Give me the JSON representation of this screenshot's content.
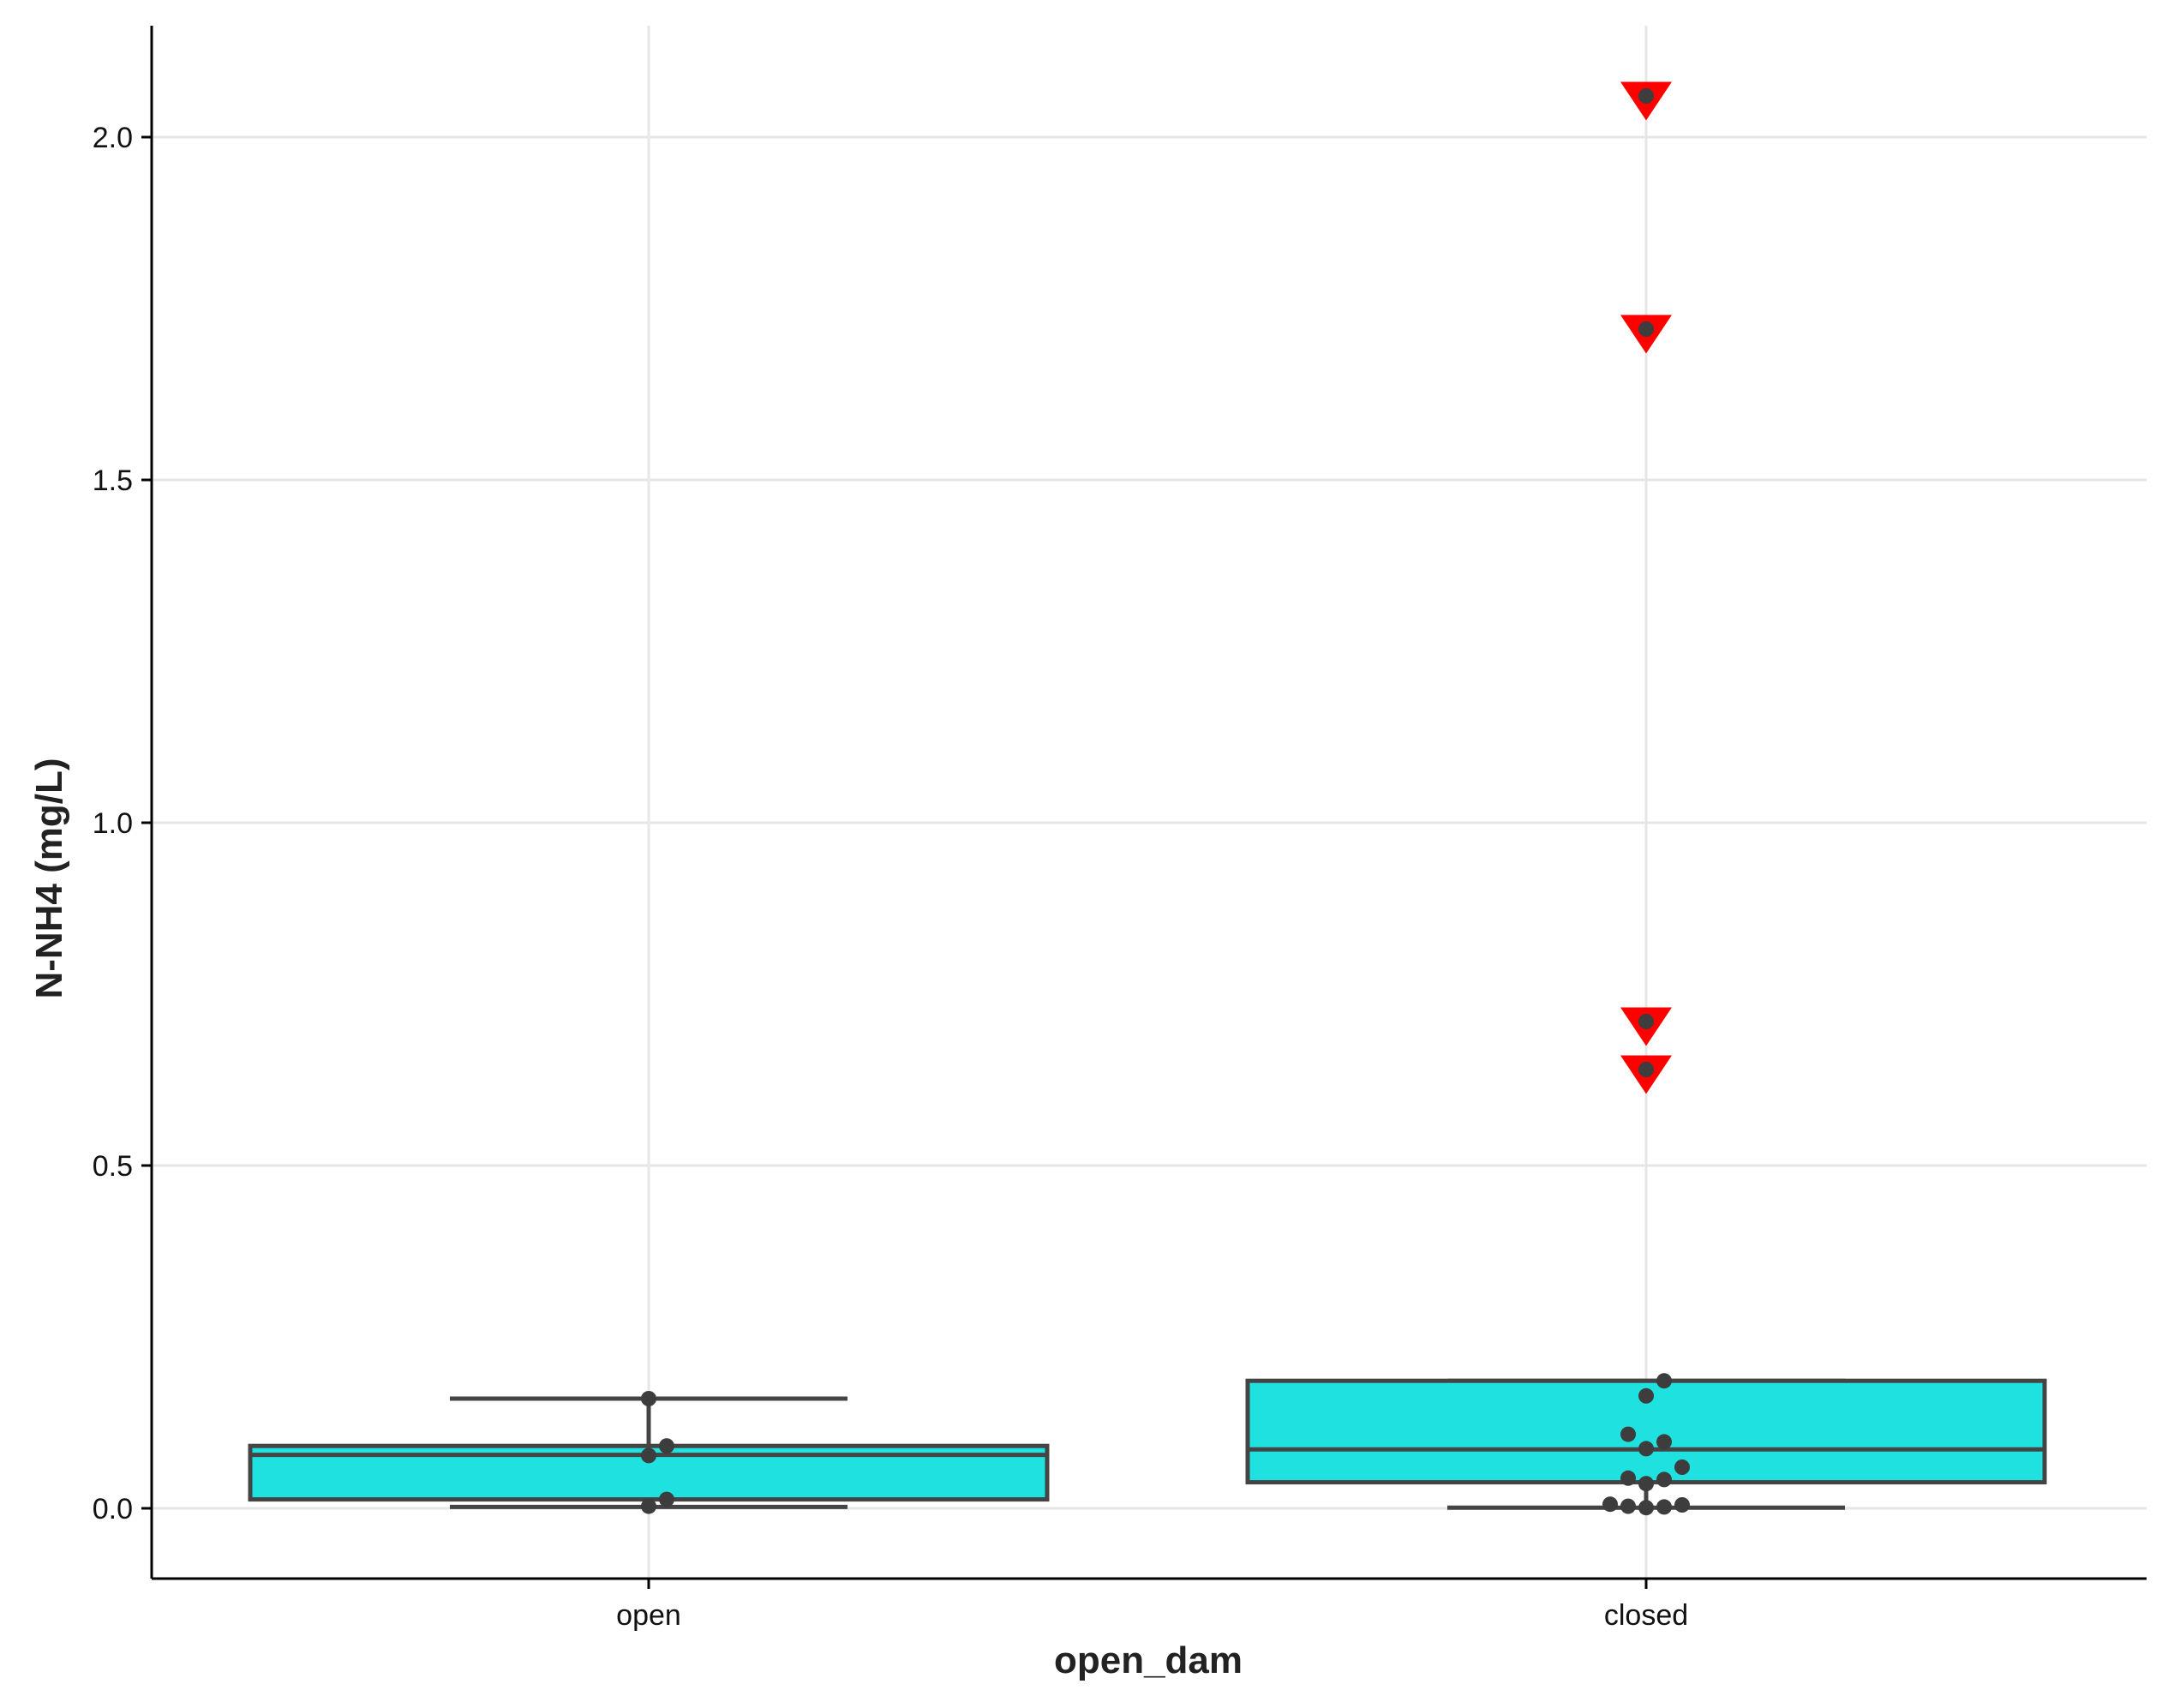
{
  "chart_data": {
    "type": "box",
    "xlabel": "open_dam",
    "ylabel": "N-NH4 (mg/L)",
    "categories": [
      "open",
      "closed"
    ],
    "ylim": [
      -0.1,
      2.16
    ],
    "yticks": [
      0.0,
      0.5,
      1.0,
      1.5,
      2.0
    ],
    "ytick_labels": [
      "0.0",
      "0.5",
      "1.0",
      "1.5",
      "2.0"
    ],
    "grid": true,
    "colors": {
      "box_fill": "#1fe1df",
      "box_edge": "#444444",
      "points": "#3d3d3d",
      "outlier_marker": "#ff0000"
    },
    "boxes": [
      {
        "category": "open",
        "whisker_low": 0.002,
        "q1": 0.013,
        "median": 0.078,
        "q3": 0.091,
        "whisker_high": 0.16
      },
      {
        "category": "closed",
        "whisker_low": 0.001,
        "q1": 0.038,
        "median": 0.086,
        "q3": 0.186,
        "whisker_high": 0.186
      }
    ],
    "points": [
      {
        "category": "open",
        "values": [
          0.16,
          0.091,
          0.077,
          0.013,
          0.003
        ]
      },
      {
        "category": "closed",
        "values": [
          2.06,
          1.72,
          0.71,
          0.64,
          0.186,
          0.164,
          0.108,
          0.097,
          0.087,
          0.06,
          0.044,
          0.042,
          0.036,
          0.006,
          0.005,
          0.003,
          0.002,
          0.001
        ]
      }
    ],
    "outlier_markers": [
      {
        "category": "closed",
        "values": [
          2.06,
          1.72,
          0.71,
          0.64
        ]
      }
    ]
  }
}
